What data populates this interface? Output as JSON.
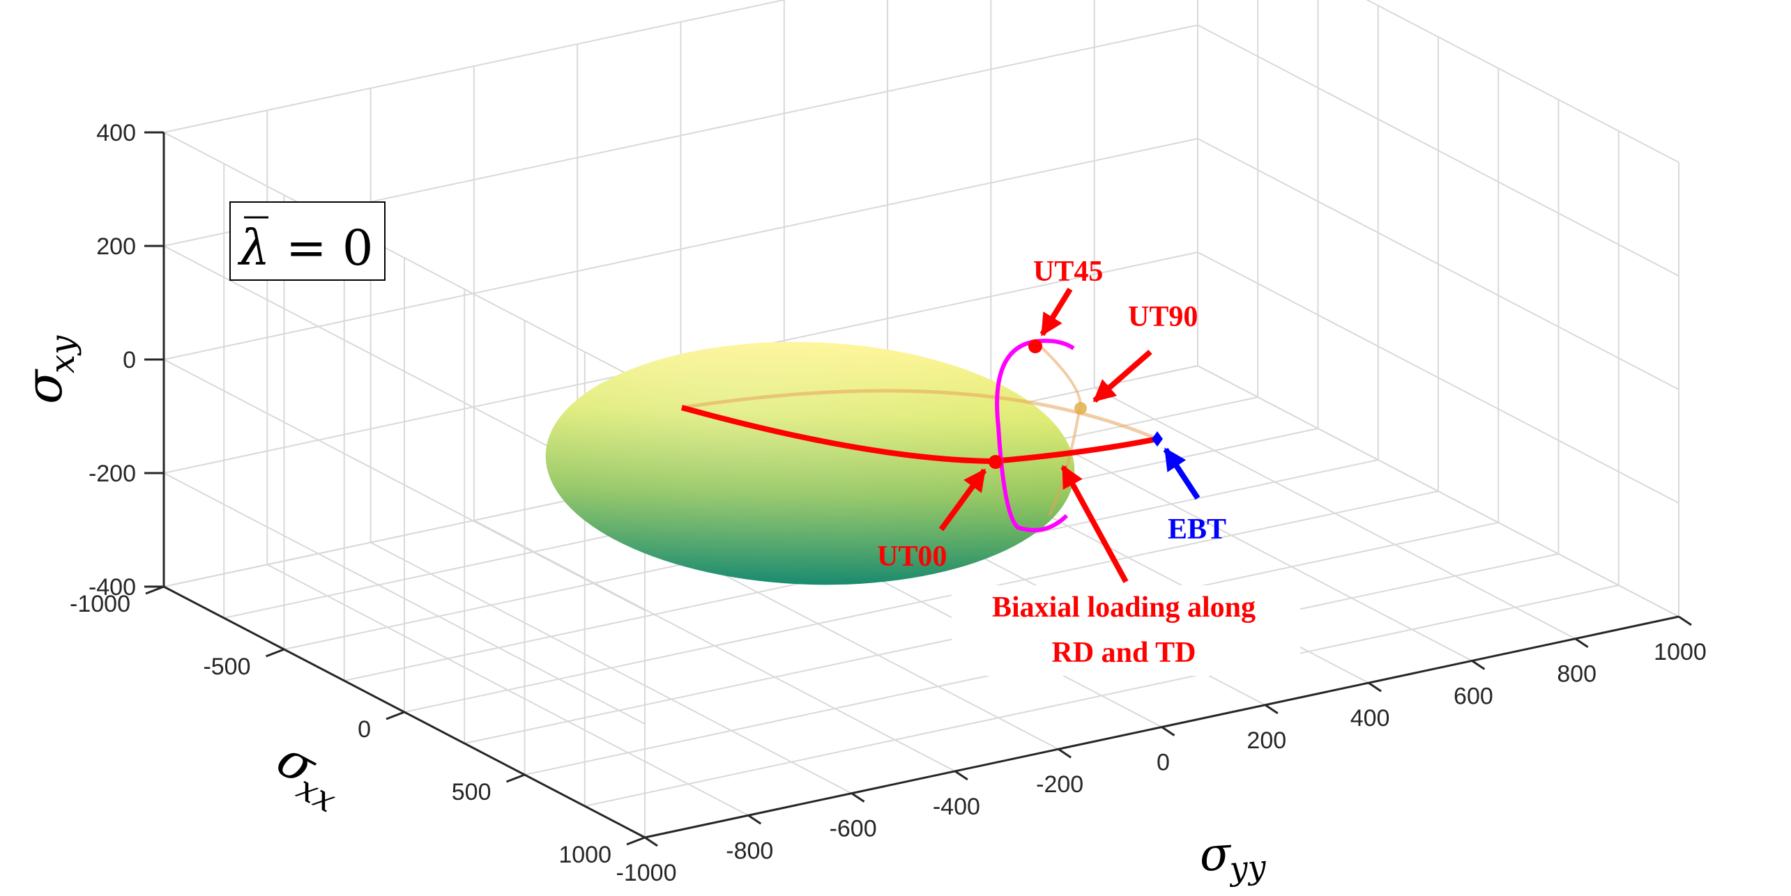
{
  "chart_data": {
    "type": "surface3d",
    "title": "",
    "xlabel": "σxx",
    "ylabel": "σyy",
    "zlabel": "σxy",
    "xlabel_main": "σ",
    "xlabel_sub": "xx",
    "ylabel_main": "σ",
    "ylabel_sub": "yy",
    "zlabel_main": "σ",
    "zlabel_sub": "xy",
    "xlim": [
      -1000,
      1000
    ],
    "ylim": [
      -1000,
      1000
    ],
    "zlim": [
      -400,
      400
    ],
    "x_ticks": [
      -1000,
      -500,
      0,
      500,
      1000
    ],
    "y_ticks": [
      -1000,
      -800,
      -600,
      -400,
      -200,
      0,
      200,
      400,
      600,
      800,
      1000
    ],
    "z_ticks": [
      -400,
      -200,
      0,
      200,
      400
    ],
    "x_tick_labels": [
      "-1000",
      "-500",
      "0",
      "500",
      "1000"
    ],
    "y_tick_labels": [
      "-1000",
      "-800",
      "-600",
      "-400",
      "-200",
      "0",
      "200",
      "400",
      "600",
      "800",
      "1000"
    ],
    "z_tick_labels": [
      "-400",
      "-200",
      "0",
      "200",
      "400"
    ],
    "grid": true,
    "surface": {
      "shape": "ellipsoid yield surface",
      "center": [
        0,
        200,
        -130
      ],
      "semi_axes": [
        330,
        780,
        120
      ],
      "colormap": [
        "#fff48c",
        "#c6dc56",
        "#17896e"
      ]
    },
    "points": [
      {
        "name": "UT00",
        "sigma_xx": 0,
        "sigma_yy": 0,
        "sigma_xy": -210
      },
      {
        "name": "UT45",
        "sigma_xx": 0,
        "sigma_yy": 0,
        "sigma_xy": 20
      },
      {
        "name": "UT90",
        "sigma_xx": -300,
        "sigma_yy": 360,
        "sigma_xy": -90
      },
      {
        "name": "EBT",
        "sigma_xx": 0,
        "sigma_yy": 990,
        "sigma_xy": -150
      }
    ],
    "annotations": {
      "lambda_label": "λ",
      "lambda_eq": "= 0",
      "ut45": "UT45",
      "ut90": "UT90",
      "ut00": "UT00",
      "ebt": "EBT",
      "biaxial_line1": "Biaxial loading along",
      "biaxial_line2": "RD and TD"
    },
    "colors": {
      "red": "#ff0000",
      "magenta": "#ff00ff",
      "blue": "#0000ff",
      "grid": "#d9d9d9",
      "axis": "#262626"
    }
  }
}
